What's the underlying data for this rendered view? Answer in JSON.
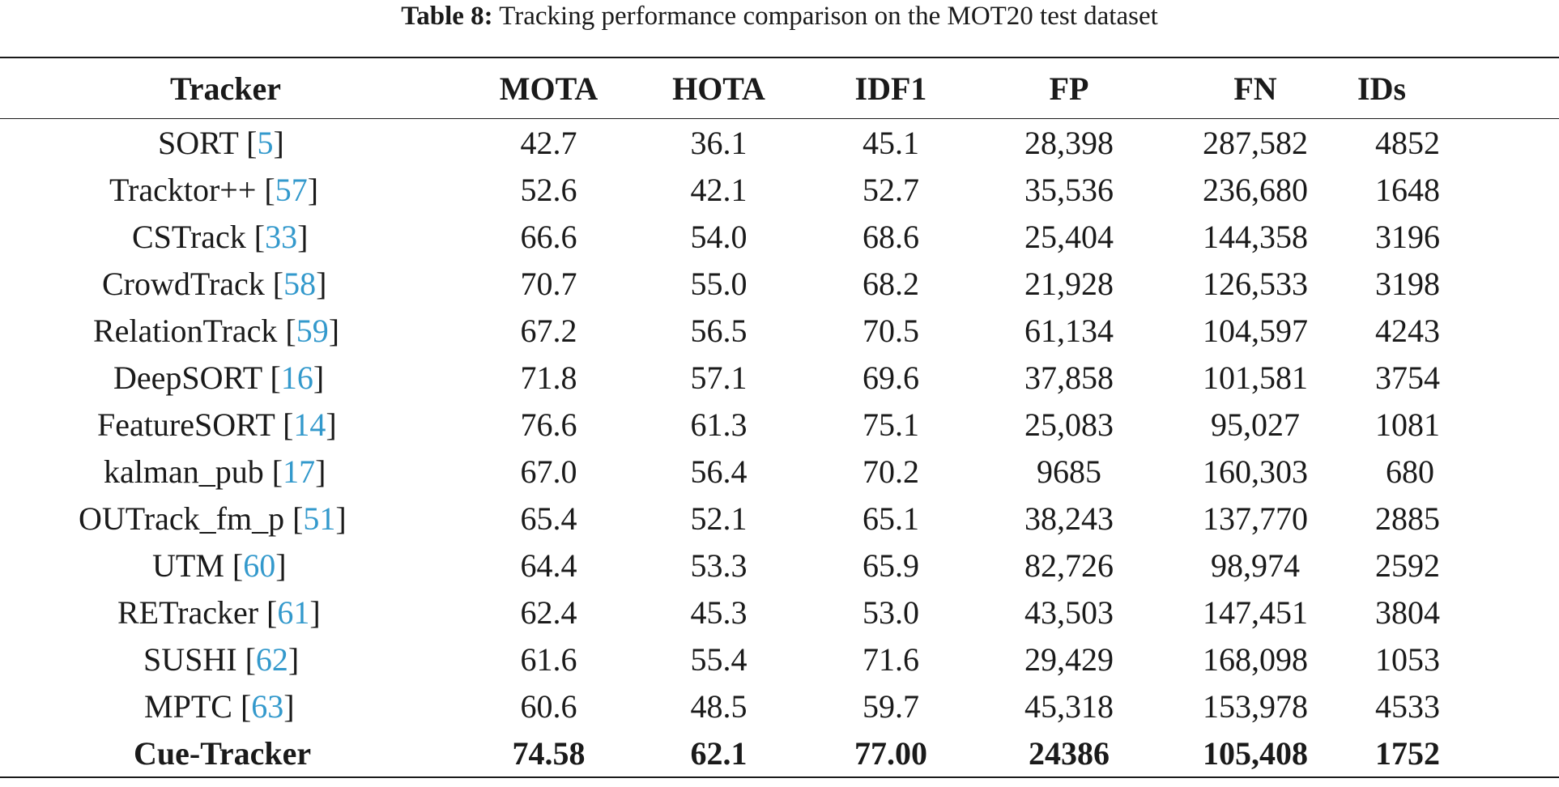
{
  "caption": {
    "label": "Table 8:",
    "text": " Tracking performance comparison on the MOT20 test dataset"
  },
  "colors": {
    "text": "#1a1a1a",
    "citation": "#3399cc"
  },
  "headers": [
    "Tracker",
    "MOTA",
    "HOTA",
    "IDF1",
    "FP",
    "FN",
    "IDs"
  ],
  "rows": [
    {
      "tracker": "SORT",
      "ref": "5",
      "mota": "42.7",
      "hota": "36.1",
      "idf1": "45.1",
      "fp": "28,398",
      "fn": "287,582",
      "ids": "4852"
    },
    {
      "tracker": "Tracktor++",
      "ref": "57",
      "mota": "52.6",
      "hota": "42.1",
      "idf1": "52.7",
      "fp": "35,536",
      "fn": "236,680",
      "ids": "1648"
    },
    {
      "tracker": "CSTrack",
      "ref": "33",
      "mota": "66.6",
      "hota": "54.0",
      "idf1": "68.6",
      "fp": "25,404",
      "fn": "144,358",
      "ids": "3196"
    },
    {
      "tracker": "CrowdTrack",
      "ref": "58",
      "mota": "70.7",
      "hota": "55.0",
      "idf1": "68.2",
      "fp": "21,928",
      "fn": "126,533",
      "ids": "3198"
    },
    {
      "tracker": "RelationTrack",
      "ref": "59",
      "mota": "67.2",
      "hota": "56.5",
      "idf1": "70.5",
      "fp": "61,134",
      "fn": "104,597",
      "ids": "4243"
    },
    {
      "tracker": "DeepSORT",
      "ref": "16",
      "mota": "71.8",
      "hota": "57.1",
      "idf1": "69.6",
      "fp": "37,858",
      "fn": "101,581",
      "ids": "3754"
    },
    {
      "tracker": "FeatureSORT",
      "ref": "14",
      "mota": "76.6",
      "hota": "61.3",
      "idf1": "75.1",
      "fp": "25,083",
      "fn": "95,027",
      "ids": "1081"
    },
    {
      "tracker": "kalman_pub",
      "ref": "17",
      "mota": "67.0",
      "hota": "56.4",
      "idf1": "70.2",
      "fp": "9685",
      "fn": "160,303",
      "ids": "680"
    },
    {
      "tracker": "OUTrack_fm_p",
      "ref": "51",
      "mota": "65.4",
      "hota": "52.1",
      "idf1": "65.1",
      "fp": "38,243",
      "fn": "137,770",
      "ids": "2885"
    },
    {
      "tracker": "UTM",
      "ref": "60",
      "mota": "64.4",
      "hota": "53.3",
      "idf1": "65.9",
      "fp": "82,726",
      "fn": "98,974",
      "ids": "2592"
    },
    {
      "tracker": "RETracker",
      "ref": "61",
      "mota": "62.4",
      "hota": "45.3",
      "idf1": "53.0",
      "fp": "43,503",
      "fn": "147,451",
      "ids": "3804"
    },
    {
      "tracker": "SUSHI",
      "ref": "62",
      "mota": "61.6",
      "hota": "55.4",
      "idf1": "71.6",
      "fp": "29,429",
      "fn": "168,098",
      "ids": "1053"
    },
    {
      "tracker": "MPTC",
      "ref": "63",
      "mota": "60.6",
      "hota": "48.5",
      "idf1": "59.7",
      "fp": "45,318",
      "fn": "153,978",
      "ids": "4533"
    },
    {
      "tracker": "Cue-Tracker",
      "ref": "",
      "mota": "74.58",
      "hota": "62.1",
      "idf1": "77.00",
      "fp": "24386",
      "fn": "105,408",
      "ids": "1752",
      "bold": true
    }
  ]
}
